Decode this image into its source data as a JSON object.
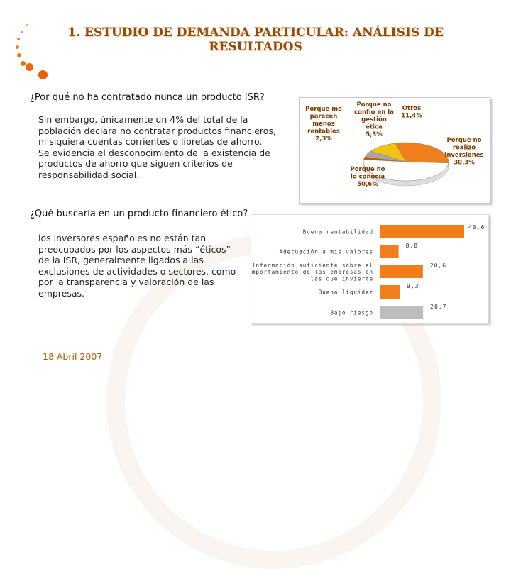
{
  "title": "1. ESTUDIO DE DEMANDA PARTICULAR: ANÁLISIS DE RESULTADOS",
  "section1": {
    "question": "¿Por qué no ha contratado nunca un producto ISR?",
    "lines": [
      "Sin embargo, únicamente un 4% del total de la",
      "población declara no contratar productos financieros,",
      "ni siquiera cuentas corrientes o libretas de ahorro.",
      "Se evidencia el desconocimiento de la existencia de",
      "productos de ahorro que siguen criterios de",
      "responsabilidad social."
    ]
  },
  "section2": {
    "question": "¿Qué buscaría en un producto financiero ético?",
    "lines": [
      "los inversores españoles no están tan",
      "preocupados por los aspectos más “éticos”",
      "de la ISR, generalmente ligados a las",
      "exclusiones de actividades o sectores, como",
      "por la transparencia y valoración de las",
      "empresas."
    ]
  },
  "footer": {
    "date": "18 Abril 2007"
  },
  "colors": {
    "title": "#9a4a00",
    "accent": "#f07e1a",
    "grey": "#bdbdbd"
  },
  "chart_data": [
    {
      "type": "pie",
      "title": "",
      "slices": [
        {
          "label": [
            "Porque no",
            "realizo",
            "inversiones"
          ],
          "value": 30.3,
          "display": "30,3%",
          "color": "#f07e1a"
        },
        {
          "label": [
            "Porque no",
            "lo conocía"
          ],
          "value": 50.6,
          "display": "50,6%",
          "color": "#ffffff"
        },
        {
          "label": [
            "Porque me",
            "parecen",
            "menos",
            "rentables"
          ],
          "value": 2.3,
          "display": "2,3%",
          "color": "#d45500"
        },
        {
          "label": [
            "Porque no",
            "confío en la",
            "gestión",
            "ética"
          ],
          "value": 5.3,
          "display": "5,3%",
          "color": "#a5a5a5"
        },
        {
          "label": [
            "Otros"
          ],
          "value": 11.4,
          "display": "11,4%",
          "color": "#f3c311"
        }
      ]
    },
    {
      "type": "bar",
      "orientation": "horizontal",
      "categories": [
        [
          "Buena rentabilidad"
        ],
        [
          "Adecuación a mis valores"
        ],
        [
          "Información suficiente sobre el",
          "comportamiento de las empresas en",
          "las que invierte"
        ],
        [
          "Buena liquidez"
        ],
        [
          "Bajo riesgo"
        ]
      ],
      "values": [
        40.6,
        8.8,
        20.6,
        9.3,
        20.7
      ],
      "value_labels": [
        "40,6",
        "8,8",
        "20,6",
        "9,3",
        "20,7"
      ],
      "colors": [
        "#f07e1a",
        "#f07e1a",
        "#f07e1a",
        "#f07e1a",
        "#bdbdbd"
      ],
      "xlim": [
        0,
        40.6
      ]
    }
  ]
}
